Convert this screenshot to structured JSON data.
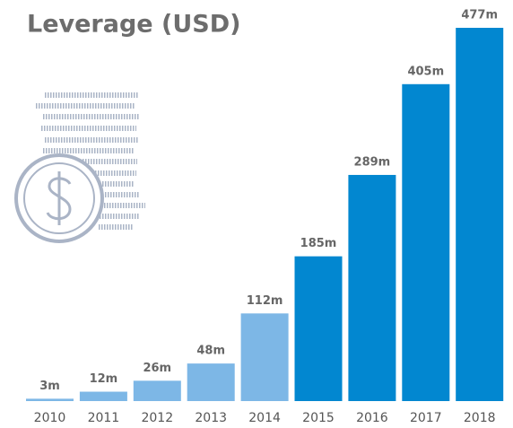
{
  "chart_data": {
    "type": "bar",
    "title": "Leverage (USD)",
    "categories": [
      "2010",
      "2011",
      "2012",
      "2013",
      "2014",
      "2015",
      "2016",
      "2017",
      "2018"
    ],
    "values": [
      3,
      12,
      26,
      48,
      112,
      185,
      289,
      405,
      477
    ],
    "value_labels": [
      "3m",
      "12m",
      "26m",
      "48m",
      "112m",
      "185m",
      "289m",
      "405m",
      "477m"
    ],
    "colors": [
      "#7db7e6",
      "#7db7e6",
      "#7db7e6",
      "#7db7e6",
      "#7db7e6",
      "#0287d0",
      "#0287d0",
      "#0287d0",
      "#0287d0"
    ]
  }
}
